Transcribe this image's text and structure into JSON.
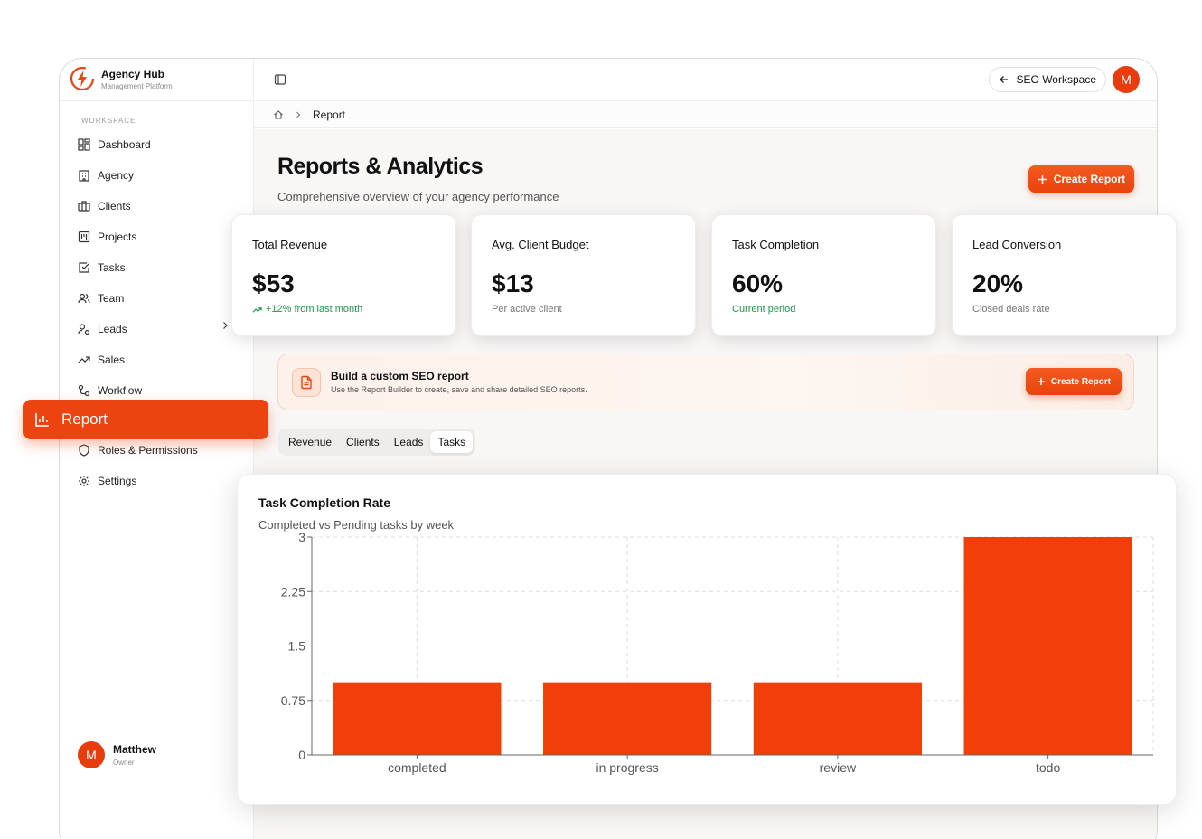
{
  "brand": {
    "title": "Agency Hub",
    "subtitle": "Management Platform"
  },
  "sidebar": {
    "section_label": "WORKSPACE",
    "items": [
      {
        "label": "Dashboard",
        "icon": "dashboard-icon"
      },
      {
        "label": "Agency",
        "icon": "building-icon"
      },
      {
        "label": "Clients",
        "icon": "briefcase-icon"
      },
      {
        "label": "Projects",
        "icon": "kanban-icon"
      },
      {
        "label": "Tasks",
        "icon": "check-square-icon"
      },
      {
        "label": "Team",
        "icon": "users-icon"
      },
      {
        "label": "Leads",
        "icon": "user-plus-icon"
      },
      {
        "label": "Sales",
        "icon": "trending-up-icon"
      },
      {
        "label": "Workflow",
        "icon": "workflow-icon"
      },
      {
        "label": "Report",
        "icon": "bar-chart-icon",
        "active": true
      },
      {
        "label": "Roles & Permissions",
        "icon": "shield-icon"
      },
      {
        "label": "Settings",
        "icon": "gear-icon"
      }
    ]
  },
  "user": {
    "initial": "M",
    "name": "Matthew",
    "role": "Owner"
  },
  "topbar": {
    "workspace_label": "SEO Workspace",
    "avatar_initial": "M"
  },
  "breadcrumb": {
    "current": "Report"
  },
  "page": {
    "title": "Reports & Analytics",
    "subtitle": "Comprehensive overview of your agency performance",
    "create_button": "Create Report"
  },
  "stats": [
    {
      "label": "Total Revenue",
      "value": "$53",
      "note": "+12% from last month",
      "note_color": "green"
    },
    {
      "label": "Avg. Client Budget",
      "value": "$13",
      "note": "Per active client",
      "note_color": "gray"
    },
    {
      "label": "Task Completion",
      "value": "60%",
      "note": "Current period",
      "note_color": "green"
    },
    {
      "label": "Lead Conversion",
      "value": "20%",
      "note": "Closed deals rate",
      "note_color": "gray"
    }
  ],
  "banner": {
    "title": "Build a custom SEO report",
    "subtitle": "Use the Report Builder to create, save and share detailed SEO reports.",
    "button": "Create Report"
  },
  "tabs": [
    {
      "label": "Revenue",
      "active": false
    },
    {
      "label": "Clients",
      "active": false
    },
    {
      "label": "Leads",
      "active": false
    },
    {
      "label": "Tasks",
      "active": true
    }
  ],
  "chart": {
    "title": "Task Completion Rate",
    "subtitle": "Completed vs Pending tasks by week"
  },
  "colors": {
    "accent": "#ec4410",
    "bar": "#f03f08",
    "green": "#1a9a4c"
  },
  "chart_data": {
    "type": "bar",
    "categories": [
      "completed",
      "in progress",
      "review",
      "todo"
    ],
    "values": [
      1,
      1,
      1,
      3
    ],
    "yticks": [
      "0",
      "0.75",
      "1.5",
      "2.25",
      "3"
    ],
    "ylim": [
      0,
      3
    ],
    "grid": true,
    "title": "Task Completion Rate",
    "subtitle": "Completed vs Pending tasks by week"
  }
}
